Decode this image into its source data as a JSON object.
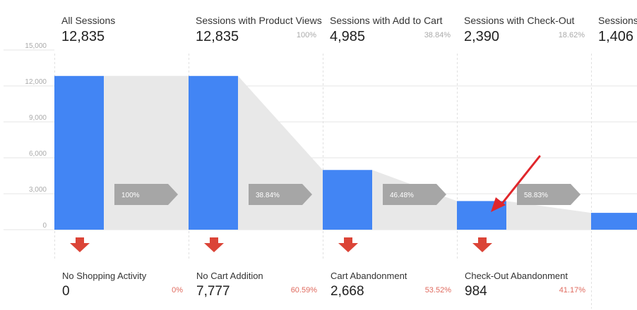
{
  "chart_data": {
    "type": "bar",
    "title": "",
    "xlabel": "",
    "ylabel": "",
    "ylim": [
      0,
      15000
    ],
    "yticks": [
      0,
      3000,
      6000,
      9000,
      12000,
      15000
    ],
    "ytick_labels": [
      "0",
      "3,000",
      "6,000",
      "9,000",
      "12,000",
      "15,000"
    ],
    "stages": [
      {
        "name": "All Sessions",
        "value": 12835,
        "value_label": "12,835",
        "pct_label": ""
      },
      {
        "name": "Sessions with Product Views",
        "value": 12835,
        "value_label": "12,835",
        "pct_label": "100%"
      },
      {
        "name": "Sessions with Add to Cart",
        "value": 4985,
        "value_label": "4,985",
        "pct_label": "38.84%"
      },
      {
        "name": "Sessions with Check-Out",
        "value": 2390,
        "value_label": "2,390",
        "pct_label": "18.62%"
      },
      {
        "name": "Sessions",
        "value": 1406,
        "value_label": "1,406",
        "pct_label": ""
      }
    ],
    "transitions": [
      "100%",
      "38.84%",
      "46.48%",
      "58.83%"
    ],
    "abandonment": [
      {
        "name": "No Shopping Activity",
        "value": 0,
        "value_label": "0",
        "pct_label": "0%"
      },
      {
        "name": "No Cart Addition",
        "value": 7777,
        "value_label": "7,777",
        "pct_label": "60.59%"
      },
      {
        "name": "Cart Abandonment",
        "value": 2668,
        "value_label": "2,668",
        "pct_label": "53.52%"
      },
      {
        "name": "Check-Out Abandonment",
        "value": 984,
        "value_label": "984",
        "pct_label": "41.17%"
      }
    ]
  },
  "colors": {
    "bar": "#4285f4",
    "flow": "#e8e8e8",
    "transition_arrow": "#a6a6a6",
    "drop_arrow": "#db4437",
    "annotation_arrow": "#e0262b",
    "grid": "#e6e6e6"
  }
}
